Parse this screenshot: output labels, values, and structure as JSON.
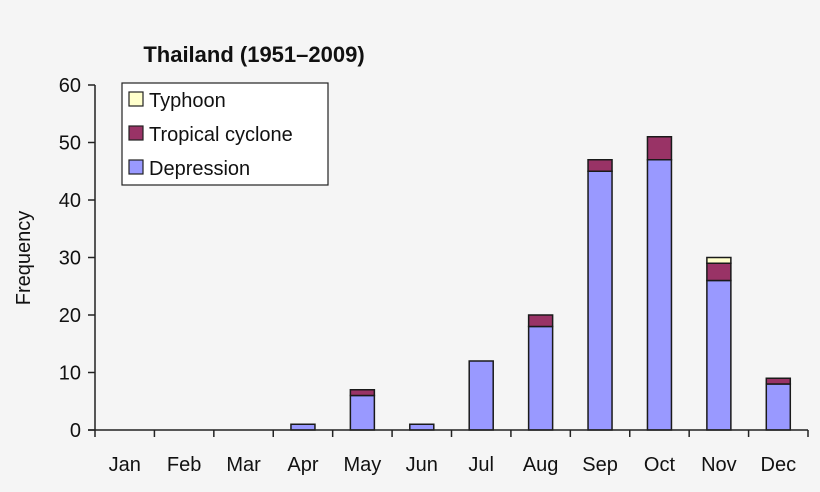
{
  "chart_data": {
    "type": "bar",
    "stacked": true,
    "title": "Thailand (1951–2009)",
    "xlabel": "",
    "ylabel": "Frequency",
    "ylim": [
      0,
      60
    ],
    "yticks": [
      0,
      10,
      20,
      30,
      40,
      50,
      60
    ],
    "grid": false,
    "legend_position": "upper-left (inside)",
    "categories": [
      "Jan",
      "Feb",
      "Mar",
      "Apr",
      "May",
      "Jun",
      "Jul",
      "Aug",
      "Sep",
      "Oct",
      "Nov",
      "Dec"
    ],
    "series": [
      {
        "name": "Depression",
        "color": "#9999ff",
        "values": [
          0,
          0,
          0,
          1,
          6,
          1,
          12,
          18,
          45,
          47,
          26,
          8
        ]
      },
      {
        "name": "Tropical cyclone",
        "color": "#993366",
        "values": [
          0,
          0,
          0,
          0,
          1,
          0,
          0,
          2,
          2,
          4,
          3,
          1
        ]
      },
      {
        "name": "Typhoon",
        "color": "#ffffcc",
        "values": [
          0,
          0,
          0,
          0,
          0,
          0,
          0,
          0,
          0,
          0,
          1,
          0
        ]
      }
    ],
    "legend_order": [
      "Typhoon",
      "Tropical cyclone",
      "Depression"
    ]
  }
}
